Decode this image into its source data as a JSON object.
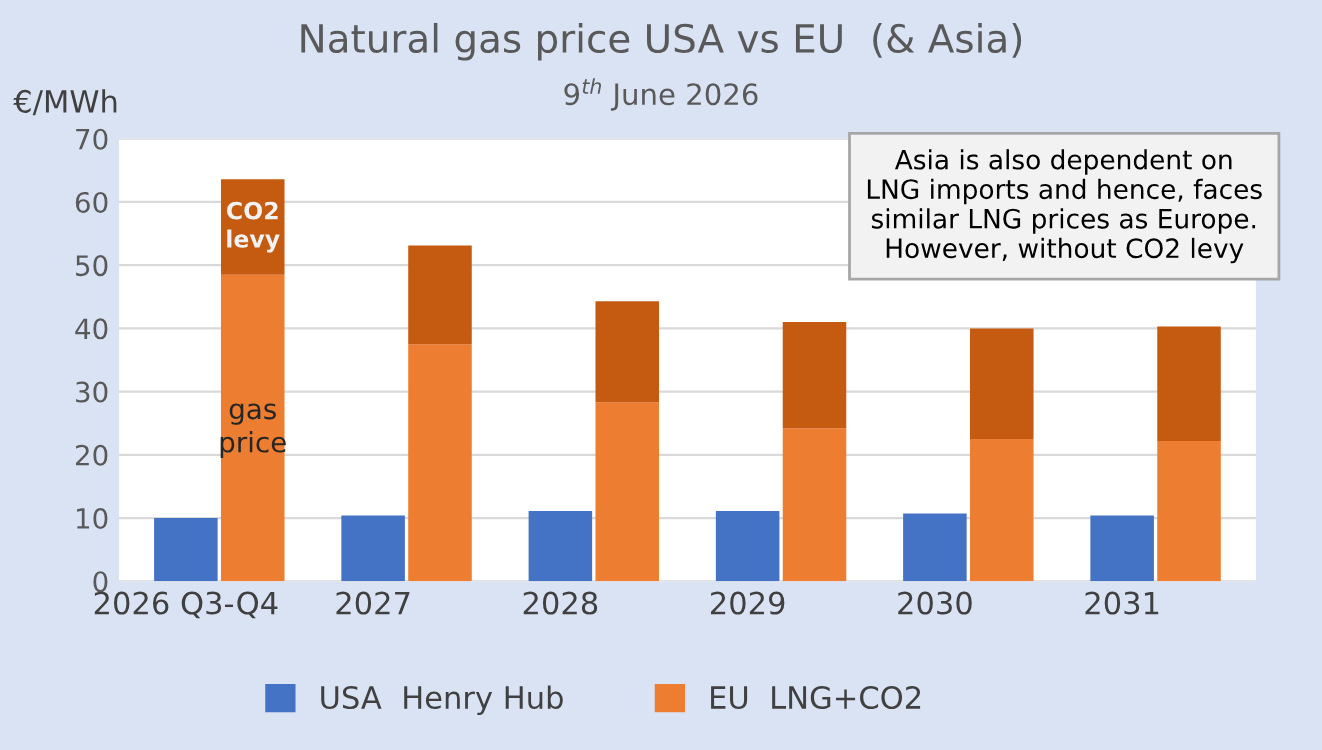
{
  "chart_data": {
    "type": "bar",
    "title": "Natural gas price USA vs EU  (& Asia)",
    "subtitle": "9$^{th}$ June 2026",
    "ylabel": "€/MWh",
    "categories": [
      "2026 Q3-Q4",
      null,
      "2027",
      null,
      "2028",
      null,
      "2029",
      null,
      "2030",
      null,
      "2031",
      null
    ],
    "stacked": true,
    "series": [
      {
        "name": "USA  Henry Hub",
        "color": "#4472c4",
        "values": [
          10.0,
          null,
          10.4,
          null,
          11.1,
          null,
          11.1,
          null,
          10.7,
          null,
          10.4,
          null
        ]
      },
      {
        "name": "EU  LNG+CO2",
        "color": "#ed7d31",
        "values": [
          null,
          48.5,
          null,
          37.5,
          null,
          28.3,
          null,
          24.2,
          null,
          22.5,
          null,
          22.2
        ]
      },
      {
        "color": "#c55a11",
        "values": [
          null,
          15.1,
          null,
          15.6,
          null,
          16.0,
          null,
          16.8,
          null,
          17.5,
          null,
          18.1
        ]
      }
    ],
    "ylim": [
      0,
      70
    ],
    "yticks": [
      0,
      10,
      20,
      30,
      40,
      50,
      60,
      70
    ],
    "grid": "y",
    "legend": "bottom",
    "annotations": [
      "CO2\nlevy",
      "gas\nprice",
      "Asia is also dependent on\nLNG imports and hence, faces\nsimilar LNG prices as Europe.\nHowever, without CO2 levy"
    ]
  }
}
